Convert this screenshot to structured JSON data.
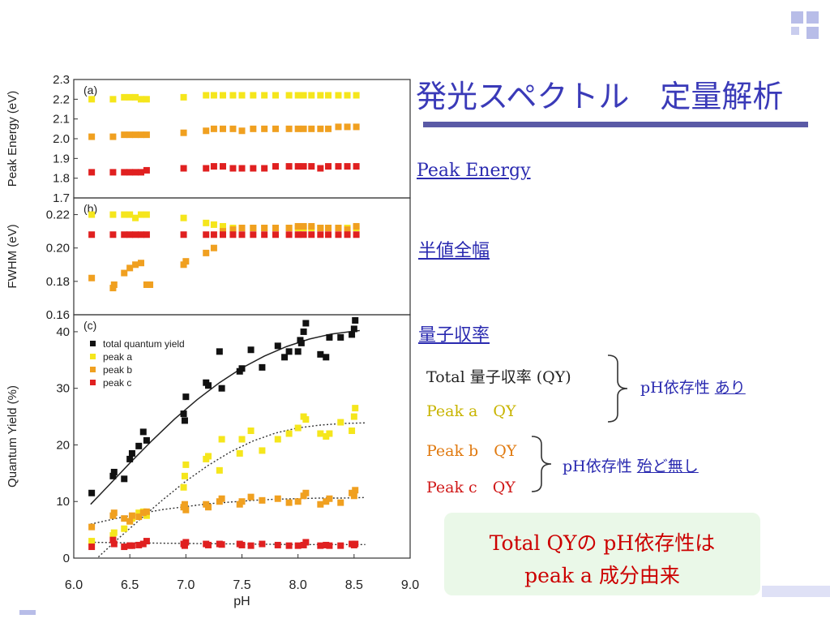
{
  "slide": {
    "title": "発光スペクトル　定量解析",
    "links": [
      "Peak Energy",
      "半値全幅",
      "量子収率"
    ],
    "qy_labels": [
      {
        "text": "Total 量子収率 (QY)",
        "color": "#222222"
      },
      {
        "text": "Peak a　QY",
        "color": "#c8b400"
      },
      {
        "text": "Peak b　QY",
        "color": "#e07a10"
      },
      {
        "text": "Peak c　QY",
        "color": "#d01818"
      }
    ],
    "note1_prefix": "pH依存性 ",
    "note1_link": "あり",
    "note2_prefix": "pH依存性 ",
    "note2_link": "殆ど無し",
    "callout_line1": "Total QYの pH依存性は",
    "callout_line2": "peak a 成分由来"
  },
  "chart_data": [
    {
      "type": "scatter",
      "panel_label": "(a)",
      "ylabel": "Peak Energy (eV)",
      "ylim": [
        1.7,
        2.3
      ],
      "yticks": [
        "1.7",
        "1.8",
        "1.9",
        "2.0",
        "2.1",
        "2.2",
        "2.3"
      ],
      "xlim": [
        6.0,
        9.0
      ],
      "series": [
        {
          "name": "peak a",
          "color": "#f5e61c",
          "x": [
            6.16,
            6.35,
            6.45,
            6.5,
            6.55,
            6.6,
            6.65,
            6.98,
            7.18,
            7.25,
            7.33,
            7.42,
            7.5,
            7.6,
            7.7,
            7.8,
            7.92,
            8.0,
            8.05,
            8.12,
            8.2,
            8.27,
            8.36,
            8.44,
            8.52
          ],
          "y": [
            2.2,
            2.2,
            2.21,
            2.21,
            2.21,
            2.2,
            2.2,
            2.21,
            2.22,
            2.22,
            2.22,
            2.22,
            2.22,
            2.22,
            2.22,
            2.22,
            2.22,
            2.22,
            2.22,
            2.22,
            2.22,
            2.22,
            2.22,
            2.22,
            2.22
          ]
        },
        {
          "name": "peak b",
          "color": "#f0a020",
          "x": [
            6.16,
            6.35,
            6.45,
            6.5,
            6.55,
            6.6,
            6.65,
            6.98,
            7.18,
            7.25,
            7.33,
            7.42,
            7.5,
            7.6,
            7.7,
            7.8,
            7.92,
            8.0,
            8.05,
            8.12,
            8.2,
            8.27,
            8.36,
            8.44,
            8.52
          ],
          "y": [
            2.01,
            2.01,
            2.02,
            2.02,
            2.02,
            2.02,
            2.02,
            2.03,
            2.04,
            2.05,
            2.05,
            2.05,
            2.04,
            2.05,
            2.05,
            2.05,
            2.05,
            2.05,
            2.05,
            2.05,
            2.05,
            2.05,
            2.06,
            2.06,
            2.06
          ]
        },
        {
          "name": "peak c",
          "color": "#e02020",
          "x": [
            6.16,
            6.35,
            6.45,
            6.5,
            6.55,
            6.6,
            6.65,
            6.98,
            7.18,
            7.25,
            7.33,
            7.42,
            7.5,
            7.6,
            7.7,
            7.8,
            7.92,
            8.0,
            8.05,
            8.12,
            8.2,
            8.27,
            8.36,
            8.44,
            8.52
          ],
          "y": [
            1.83,
            1.83,
            1.83,
            1.83,
            1.83,
            1.83,
            1.84,
            1.85,
            1.85,
            1.86,
            1.86,
            1.85,
            1.85,
            1.85,
            1.85,
            1.86,
            1.86,
            1.86,
            1.86,
            1.86,
            1.85,
            1.86,
            1.86,
            1.86,
            1.86
          ]
        }
      ]
    },
    {
      "type": "scatter",
      "panel_label": "(b)",
      "ylabel": "FWHM (eV)",
      "ylim": [
        0.16,
        0.23
      ],
      "yticks": [
        "0.16",
        "0.18",
        "0.20",
        "0.22"
      ],
      "xlim": [
        6.0,
        9.0
      ],
      "series": [
        {
          "name": "peak a",
          "color": "#f5e61c",
          "x": [
            6.16,
            6.35,
            6.45,
            6.5,
            6.55,
            6.6,
            6.65,
            6.98,
            7.18,
            7.25,
            7.33,
            7.42,
            7.5,
            7.6,
            7.7,
            7.8,
            7.92,
            8.0,
            8.05,
            8.12,
            8.2,
            8.27,
            8.36,
            8.44,
            8.52
          ],
          "y": [
            0.22,
            0.22,
            0.22,
            0.22,
            0.218,
            0.22,
            0.22,
            0.218,
            0.215,
            0.214,
            0.213,
            0.212,
            0.212,
            0.212,
            0.212,
            0.212,
            0.212,
            0.212,
            0.212,
            0.212,
            0.212,
            0.212,
            0.212,
            0.212,
            0.212
          ]
        },
        {
          "name": "peak b",
          "color": "#f0a020",
          "x": [
            6.16,
            6.35,
            6.36,
            6.45,
            6.5,
            6.55,
            6.6,
            6.65,
            6.68,
            6.98,
            7.0,
            7.18,
            7.25,
            7.33,
            7.42,
            7.5,
            7.6,
            7.7,
            7.8,
            7.92,
            8.0,
            8.05,
            8.12,
            8.2,
            8.27,
            8.36,
            8.44,
            8.52
          ],
          "y": [
            0.182,
            0.176,
            0.178,
            0.185,
            0.188,
            0.19,
            0.191,
            0.178,
            0.178,
            0.19,
            0.192,
            0.197,
            0.2,
            0.21,
            0.211,
            0.212,
            0.212,
            0.212,
            0.212,
            0.212,
            0.213,
            0.213,
            0.213,
            0.212,
            0.212,
            0.212,
            0.211,
            0.213
          ]
        },
        {
          "name": "peak c",
          "color": "#e02020",
          "x": [
            6.16,
            6.35,
            6.45,
            6.5,
            6.55,
            6.6,
            6.65,
            6.98,
            7.18,
            7.25,
            7.33,
            7.42,
            7.5,
            7.6,
            7.7,
            7.8,
            7.92,
            8.0,
            8.05,
            8.12,
            8.2,
            8.27,
            8.36,
            8.44,
            8.52
          ],
          "y": [
            0.208,
            0.208,
            0.208,
            0.208,
            0.208,
            0.208,
            0.208,
            0.208,
            0.208,
            0.208,
            0.208,
            0.208,
            0.208,
            0.208,
            0.208,
            0.208,
            0.208,
            0.208,
            0.208,
            0.208,
            0.208,
            0.208,
            0.208,
            0.208,
            0.208
          ]
        }
      ]
    },
    {
      "type": "scatter",
      "panel_label": "(c)",
      "ylabel": "Quantum Yield (%)",
      "xlabel": "pH",
      "ylim": [
        0,
        43
      ],
      "yticks": [
        "0",
        "10",
        "20",
        "30",
        "40"
      ],
      "xlim": [
        6.0,
        9.0
      ],
      "xticks": [
        "6.0",
        "6.5",
        "7.0",
        "7.5",
        "8.0",
        "8.5",
        "9.0"
      ],
      "legend": "top-left",
      "series": [
        {
          "name": "total quantum yield",
          "color": "#111111",
          "x": [
            6.16,
            6.35,
            6.36,
            6.45,
            6.5,
            6.52,
            6.58,
            6.62,
            6.65,
            6.98,
            6.99,
            7.0,
            7.18,
            7.2,
            7.3,
            7.32,
            7.48,
            7.5,
            7.58,
            7.68,
            7.82,
            7.88,
            7.92,
            8.0,
            8.02,
            8.03,
            8.05,
            8.07,
            8.2,
            8.25,
            8.28,
            8.38,
            8.48,
            8.5,
            8.51
          ],
          "y": [
            11.5,
            14.5,
            15.2,
            14,
            17.5,
            18.5,
            19.8,
            22.3,
            20.8,
            25.5,
            24.3,
            28.5,
            31,
            30.5,
            36.5,
            30,
            33,
            33.5,
            36.8,
            33.7,
            37.5,
            35.5,
            36.5,
            36.5,
            38.5,
            38,
            40,
            41.5,
            36,
            35.5,
            39,
            39,
            39.5,
            40.5,
            42
          ]
        },
        {
          "name": "peak a",
          "color": "#f5e61c",
          "x": [
            6.16,
            6.35,
            6.36,
            6.45,
            6.5,
            6.52,
            6.58,
            6.62,
            6.65,
            6.98,
            6.99,
            7.0,
            7.18,
            7.2,
            7.3,
            7.32,
            7.48,
            7.5,
            7.58,
            7.68,
            7.82,
            7.92,
            8.0,
            8.05,
            8.07,
            8.2,
            8.25,
            8.28,
            8.38,
            8.48,
            8.5,
            8.51
          ],
          "y": [
            3,
            4,
            4.5,
            5.2,
            6.5,
            7,
            8,
            8.2,
            7.5,
            12.5,
            14.5,
            16.5,
            17.5,
            18,
            15.5,
            21,
            18.5,
            21,
            22.5,
            19,
            21,
            22,
            23,
            25,
            24.5,
            22,
            21.5,
            22,
            24,
            22.5,
            25,
            26.5
          ]
        },
        {
          "name": "peak b",
          "color": "#f0a020",
          "x": [
            6.16,
            6.35,
            6.36,
            6.45,
            6.5,
            6.52,
            6.58,
            6.62,
            6.65,
            6.98,
            6.99,
            7.0,
            7.18,
            7.2,
            7.3,
            7.32,
            7.48,
            7.5,
            7.58,
            7.68,
            7.82,
            7.92,
            8.0,
            8.05,
            8.07,
            8.2,
            8.25,
            8.28,
            8.38,
            8.48,
            8.5,
            8.51
          ],
          "y": [
            5.5,
            7.5,
            8,
            7,
            6.5,
            7.5,
            7.3,
            8,
            8.2,
            9,
            9.5,
            8.5,
            9.5,
            9,
            10,
            10.5,
            9.5,
            10,
            10.8,
            10.2,
            10.5,
            9.8,
            10,
            11,
            11.5,
            9.5,
            10,
            10.5,
            9.8,
            11.5,
            11,
            12
          ]
        },
        {
          "name": "peak c",
          "color": "#e02020",
          "x": [
            6.16,
            6.35,
            6.36,
            6.45,
            6.5,
            6.52,
            6.58,
            6.62,
            6.65,
            6.98,
            6.99,
            7.0,
            7.18,
            7.2,
            7.3,
            7.32,
            7.48,
            7.5,
            7.58,
            7.68,
            7.82,
            7.92,
            8.0,
            8.05,
            8.07,
            8.2,
            8.25,
            8.28,
            8.38,
            8.48,
            8.5,
            8.51
          ],
          "y": [
            2,
            3.2,
            2.5,
            2,
            2.2,
            2.2,
            2.3,
            2.5,
            3,
            2.5,
            2.2,
            2.8,
            2.5,
            2.3,
            2.5,
            2.4,
            2.5,
            2.3,
            2.2,
            2.5,
            2.3,
            2.2,
            2.2,
            2.3,
            2.8,
            2.2,
            2.3,
            2.2,
            2.2,
            2.5,
            2.3,
            2.5
          ]
        }
      ],
      "fit_lines": [
        {
          "series": "total quantum yield",
          "style": "solid",
          "color": "#222222",
          "x": [
            6.15,
            6.3,
            6.5,
            6.7,
            6.9,
            7.1,
            7.3,
            7.5,
            7.7,
            7.9,
            8.1,
            8.3,
            8.5,
            8.55
          ],
          "y": [
            9.5,
            12.6,
            16.8,
            20.8,
            24.6,
            28.0,
            31.0,
            33.6,
            35.7,
            37.4,
            38.7,
            39.6,
            40.1,
            40.2
          ]
        },
        {
          "series": "peak a",
          "style": "dotted",
          "color": "#333333",
          "x": [
            6.22,
            6.4,
            6.6,
            6.8,
            7.0,
            7.2,
            7.4,
            7.6,
            7.8,
            8.0,
            8.2,
            8.4,
            8.6
          ],
          "y": [
            0.2,
            3.5,
            7.0,
            10.4,
            13.6,
            16.4,
            18.8,
            20.7,
            22.1,
            23.0,
            23.5,
            23.8,
            23.9
          ]
        },
        {
          "series": "peak b",
          "style": "dotted",
          "color": "#333333",
          "x": [
            6.15,
            6.4,
            6.6,
            6.8,
            7.0,
            7.2,
            7.4,
            7.6,
            7.8,
            8.0,
            8.2,
            8.4,
            8.6
          ],
          "y": [
            6.0,
            7.1,
            7.9,
            8.6,
            9.1,
            9.6,
            9.9,
            10.2,
            10.4,
            10.5,
            10.6,
            10.6,
            10.7
          ]
        },
        {
          "series": "peak c",
          "style": "dotted",
          "color": "#333333",
          "x": [
            6.15,
            6.5,
            7.0,
            7.5,
            8.0,
            8.6
          ],
          "y": [
            2.8,
            2.7,
            2.6,
            2.5,
            2.4,
            2.4
          ]
        }
      ]
    }
  ]
}
